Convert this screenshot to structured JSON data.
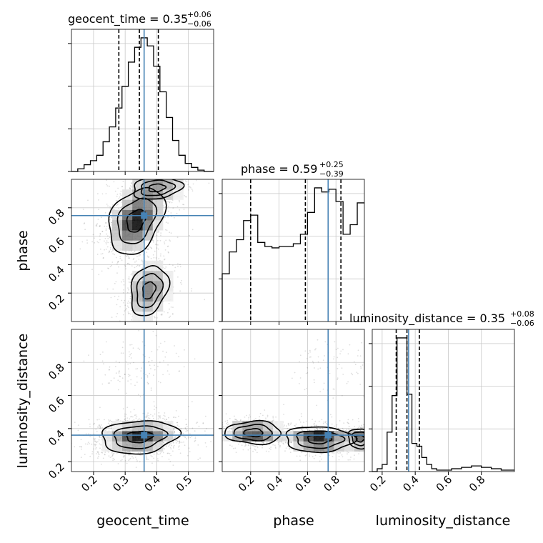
{
  "chart_data": {
    "type": "corner",
    "parameters": [
      "geocent_time",
      "phase",
      "luminosity_distance"
    ],
    "truth": {
      "geocent_time": 0.36,
      "phase": 0.745,
      "luminosity_distance": 0.36
    },
    "truth_color": "#4682b4",
    "contour_color": "#000000",
    "axes": {
      "geocent_time": {
        "range": [
          0.13,
          0.58
        ],
        "ticks": [
          0.2,
          0.3,
          0.4,
          0.5
        ],
        "tick_labels": [
          "0.2",
          "0.3",
          "0.4",
          "0.5"
        ]
      },
      "phase": {
        "range": [
          0.0,
          1.0
        ],
        "ticks": [
          0.2,
          0.4,
          0.6,
          0.8
        ],
        "tick_labels": [
          "0.2",
          "0.4",
          "0.6",
          "0.8"
        ]
      },
      "luminosity_distance": {
        "range": [
          0.14,
          1.0
        ],
        "ticks": [
          0.2,
          0.4,
          0.6,
          0.8
        ],
        "tick_labels": [
          "0.2",
          "0.4",
          "0.6",
          "0.8"
        ]
      }
    },
    "marginals": [
      {
        "parameter": "geocent_time",
        "title_base": "geocent_time = 0.35",
        "title_plus": "+0.06",
        "title_minus": "−0.06",
        "quantiles": [
          0.28,
          0.345,
          0.405
        ],
        "bin_edges": [
          0.13,
          0.15,
          0.17,
          0.19,
          0.21,
          0.23,
          0.25,
          0.27,
          0.29,
          0.31,
          0.33,
          0.35,
          0.37,
          0.39,
          0.41,
          0.43,
          0.45,
          0.47,
          0.49,
          0.51,
          0.53,
          0.55,
          0.57,
          0.59
        ],
        "counts": [
          0,
          2,
          5,
          8,
          12,
          22,
          33,
          47,
          63,
          81,
          92,
          99,
          93,
          78,
          59,
          40,
          23,
          12,
          6,
          3,
          1,
          0,
          0
        ]
      },
      {
        "parameter": "phase",
        "title_base": "phase = 0.59",
        "title_plus": "+0.25",
        "title_minus": "−0.39",
        "quantiles": [
          0.2,
          0.585,
          0.835
        ],
        "bin_edges": [
          0.0,
          0.05,
          0.1,
          0.15,
          0.2,
          0.25,
          0.3,
          0.35,
          0.4,
          0.45,
          0.5,
          0.55,
          0.6,
          0.65,
          0.7,
          0.75,
          0.8,
          0.85,
          0.9,
          0.95,
          1.0
        ],
        "counts": [
          35,
          51,
          60,
          74,
          78,
          58,
          55,
          54,
          55,
          55,
          57,
          64,
          80,
          98,
          95,
          97,
          88,
          64,
          71,
          87
        ]
      },
      {
        "parameter": "luminosity_distance",
        "title_base": "luminosity_distance = 0.35",
        "title_plus": "+0.08",
        "title_minus": "−0.06",
        "quantiles": [
          0.285,
          0.35,
          0.425
        ],
        "bin_edges": [
          0.14,
          0.17,
          0.2,
          0.23,
          0.26,
          0.29,
          0.32,
          0.35,
          0.38,
          0.41,
          0.44,
          0.47,
          0.5,
          0.53,
          0.56,
          0.59,
          0.62,
          0.65,
          0.68,
          0.71,
          0.74,
          0.77,
          0.8,
          0.83,
          0.86,
          0.89,
          0.92,
          0.95,
          0.98,
          1.01
        ],
        "counts": [
          0,
          2,
          5,
          28,
          54,
          95,
          95,
          55,
          20,
          18,
          10,
          5,
          2,
          1,
          1,
          1,
          2,
          2,
          3,
          3,
          4,
          4,
          3,
          3,
          2,
          2,
          1,
          1,
          1
        ]
      }
    ],
    "joint": [
      {
        "x": "geocent_time",
        "y": "phase",
        "modes": [
          {
            "cx": 0.335,
            "cy": 0.71,
            "sx": 0.04,
            "sy": 0.1,
            "w": 1.0,
            "tilt": 0.35
          },
          {
            "cx": 0.375,
            "cy": 0.22,
            "sx": 0.035,
            "sy": 0.1,
            "w": 0.6,
            "tilt": 0.25
          },
          {
            "cx": 0.4,
            "cy": 0.94,
            "sx": 0.05,
            "sy": 0.05,
            "w": 0.5,
            "tilt": 0.2
          }
        ]
      },
      {
        "x": "geocent_time",
        "y": "luminosity_distance",
        "modes": [
          {
            "cx": 0.345,
            "cy": 0.35,
            "sx": 0.055,
            "sy": 0.045,
            "w": 1.0,
            "tilt": 0.15
          },
          {
            "cx": 0.34,
            "cy": 0.78,
            "sx": 0.05,
            "sy": 0.08,
            "w": 0.06,
            "tilt": 0.0
          }
        ]
      },
      {
        "x": "phase",
        "y": "luminosity_distance",
        "modes": [
          {
            "cx": 0.22,
            "cy": 0.375,
            "sx": 0.1,
            "sy": 0.035,
            "w": 0.8,
            "tilt": -0.03
          },
          {
            "cx": 0.68,
            "cy": 0.335,
            "sx": 0.11,
            "sy": 0.035,
            "w": 1.0,
            "tilt": -0.03
          },
          {
            "cx": 0.97,
            "cy": 0.34,
            "sx": 0.05,
            "sy": 0.035,
            "w": 0.6,
            "tilt": -0.03
          },
          {
            "cx": 0.8,
            "cy": 0.78,
            "sx": 0.12,
            "sy": 0.08,
            "w": 0.06,
            "tilt": 0.0
          }
        ]
      }
    ],
    "grid": true,
    "xlabels": [
      "geocent_time",
      "phase",
      "luminosity_distance"
    ],
    "ylabels": [
      "phase",
      "luminosity_distance"
    ]
  }
}
